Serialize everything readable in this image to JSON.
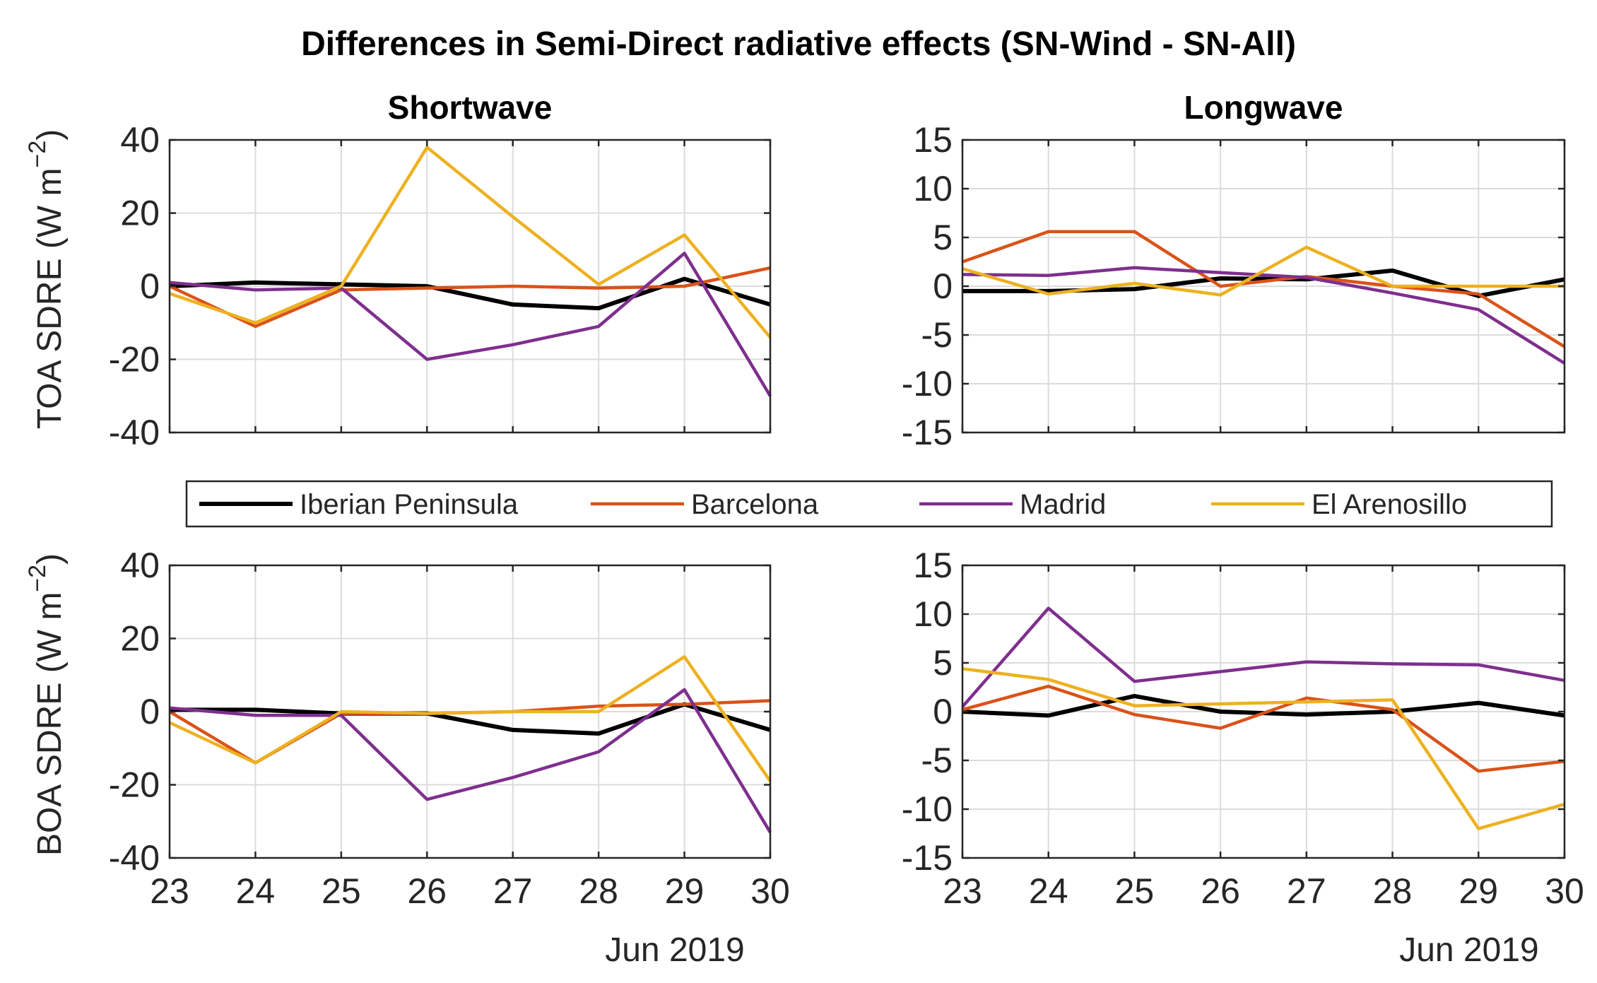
{
  "figure_title": "Differences in Semi-Direct radiative effects (SN-Wind - SN-All)",
  "x_axis_date_label": "Jun 2019",
  "legend": [
    {
      "name": "Iberian Peninsula",
      "color": "#000000"
    },
    {
      "name": "Barcelona",
      "color": "#D95319"
    },
    {
      "name": "Madrid",
      "color": "#7E2F8E"
    },
    {
      "name": "El Arenosillo",
      "color": "#EDB120"
    }
  ],
  "chart_data": [
    {
      "type": "line",
      "title": "Shortwave",
      "ylabel": "TOA SDRE (W m^-2)",
      "ylabel_base": "TOA SDRE (W m",
      "ylabel_exp": "−2",
      "ylabel_close": ")",
      "xlabel": "",
      "x": [
        23,
        24,
        25,
        26,
        27,
        28,
        29,
        30
      ],
      "xticks": [
        "23",
        "24",
        "25",
        "26",
        "27",
        "28",
        "29",
        "30"
      ],
      "show_xticks": false,
      "ylim": [
        -40,
        40
      ],
      "yticks": [
        40,
        20,
        0,
        -20,
        -40
      ],
      "ytick_labels": [
        "40",
        "20",
        "0",
        "-20",
        "-40"
      ],
      "grid": true,
      "series": [
        {
          "name": "Iberian Peninsula",
          "color": "#000000",
          "values": [
            0,
            1,
            0.5,
            0,
            -5,
            -6,
            2,
            -5
          ]
        },
        {
          "name": "Barcelona",
          "color": "#D95319",
          "values": [
            0,
            -11,
            -1,
            -0.5,
            0,
            -0.5,
            0,
            5
          ]
        },
        {
          "name": "Madrid",
          "color": "#7E2F8E",
          "values": [
            1,
            -1,
            -0.5,
            -20,
            -16,
            -11,
            9,
            -30
          ]
        },
        {
          "name": "El Arenosillo",
          "color": "#EDB120",
          "values": [
            -2,
            -10,
            0,
            38,
            19,
            0.5,
            14,
            -14
          ]
        }
      ]
    },
    {
      "type": "line",
      "title": "Longwave",
      "ylabel": "",
      "xlabel": "",
      "x": [
        23,
        24,
        25,
        26,
        27,
        28,
        29,
        30
      ],
      "xticks": [
        "23",
        "24",
        "25",
        "26",
        "27",
        "28",
        "29",
        "30"
      ],
      "show_xticks": false,
      "ylim": [
        -15,
        15
      ],
      "yticks": [
        15,
        10,
        5,
        0,
        -5,
        -10,
        -15
      ],
      "ytick_labels": [
        "15",
        "10",
        "5",
        "0",
        "-5",
        "-10",
        "-15"
      ],
      "grid": true,
      "series": [
        {
          "name": "Iberian Peninsula",
          "color": "#000000",
          "values": [
            -0.5,
            -0.5,
            -0.3,
            0.8,
            0.7,
            1.6,
            -1.0,
            0.7
          ]
        },
        {
          "name": "Barcelona",
          "color": "#D95319",
          "values": [
            2.5,
            5.6,
            5.6,
            0,
            1,
            0,
            -0.8,
            -6.2
          ]
        },
        {
          "name": "Madrid",
          "color": "#7E2F8E",
          "values": [
            1.2,
            1.1,
            1.9,
            1.4,
            0.9,
            -0.7,
            -2.4,
            -7.9
          ]
        },
        {
          "name": "El Arenosillo",
          "color": "#EDB120",
          "values": [
            1.8,
            -0.8,
            0.3,
            -0.9,
            4,
            0,
            0,
            0
          ]
        }
      ]
    },
    {
      "type": "line",
      "title": "",
      "ylabel": "BOA SDRE (W m^-2)",
      "ylabel_base": "BOA SDRE (W m",
      "ylabel_exp": "−2",
      "ylabel_close": ")",
      "xlabel": "Jun 2019",
      "x": [
        23,
        24,
        25,
        26,
        27,
        28,
        29,
        30
      ],
      "xticks": [
        "23",
        "24",
        "25",
        "26",
        "27",
        "28",
        "29",
        "30"
      ],
      "show_xticks": true,
      "ylim": [
        -40,
        40
      ],
      "yticks": [
        40,
        20,
        0,
        -20,
        -40
      ],
      "ytick_labels": [
        "40",
        "20",
        "0",
        "-20",
        "-40"
      ],
      "grid": true,
      "series": [
        {
          "name": "Iberian Peninsula",
          "color": "#000000",
          "values": [
            0.5,
            0.5,
            -0.5,
            -0.5,
            -5,
            -6,
            2,
            -5
          ]
        },
        {
          "name": "Barcelona",
          "color": "#D95319",
          "values": [
            0,
            -14,
            -0.5,
            -0.5,
            0,
            1.5,
            2,
            3
          ]
        },
        {
          "name": "Madrid",
          "color": "#7E2F8E",
          "values": [
            1,
            -1,
            -1,
            -24,
            -18,
            -11,
            6,
            -33
          ]
        },
        {
          "name": "El Arenosillo",
          "color": "#EDB120",
          "values": [
            -3,
            -14,
            0,
            -0.5,
            0,
            0,
            15,
            -19
          ]
        }
      ]
    },
    {
      "type": "line",
      "title": "",
      "ylabel": "",
      "xlabel": "Jun 2019",
      "x": [
        23,
        24,
        25,
        26,
        27,
        28,
        29,
        30
      ],
      "xticks": [
        "23",
        "24",
        "25",
        "26",
        "27",
        "28",
        "29",
        "30"
      ],
      "show_xticks": true,
      "ylim": [
        -15,
        15
      ],
      "yticks": [
        15,
        10,
        5,
        0,
        -5,
        -10,
        -15
      ],
      "ytick_labels": [
        "15",
        "10",
        "5",
        "0",
        "-5",
        "-10",
        "-15"
      ],
      "grid": true,
      "series": [
        {
          "name": "Iberian Peninsula",
          "color": "#000000",
          "values": [
            0,
            -0.4,
            1.6,
            0,
            -0.3,
            0,
            0.9,
            -0.4
          ]
        },
        {
          "name": "Barcelona",
          "color": "#D95319",
          "values": [
            0.2,
            2.6,
            -0.3,
            -1.7,
            1.4,
            0.2,
            -6.1,
            -5.1
          ]
        },
        {
          "name": "Madrid",
          "color": "#7E2F8E",
          "values": [
            0.5,
            10.6,
            3.1,
            4.1,
            5.1,
            4.9,
            4.8,
            3.2
          ]
        },
        {
          "name": "El Arenosillo",
          "color": "#EDB120",
          "values": [
            4.4,
            3.3,
            0.6,
            0.8,
            1,
            1.2,
            -12,
            -9.5
          ]
        }
      ]
    }
  ]
}
